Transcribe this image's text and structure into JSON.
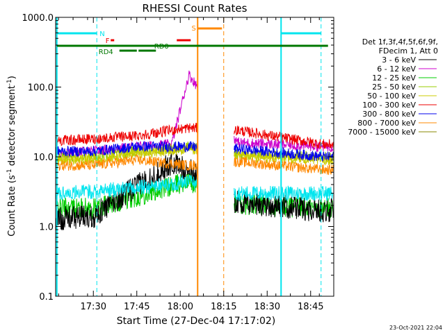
{
  "chart_data": {
    "type": "line",
    "title": "RHESSI Count Rates",
    "xlabel": "Start Time (27-Dec-04 17:17:02)",
    "ylabel_main": "Count Rate (s",
    "ylabel_sup1": "-1",
    "ylabel_mid": " detector segment",
    "ylabel_sup2": "-1",
    "ylabel_end": ")",
    "yscale": "log",
    "ylim": [
      0.1,
      1000
    ],
    "xlim_minutes": [
      17.283,
      18.883
    ],
    "x_ticks": [
      "17:30",
      "17:45",
      "18:00",
      "18:15",
      "18:30",
      "18:45"
    ],
    "y_ticks": [
      "0.1",
      "1.0",
      "10.0",
      "100.0",
      "1000.0"
    ],
    "legend_header": [
      "Det 1f,3f,4f,5f,6f,9f,",
      "FDecim 1, Att 0"
    ],
    "series": [
      {
        "name": "3 - 6 keV",
        "color": "#000000",
        "levels": [
          1.3,
          1.4,
          3.8,
          8.0,
          6.5,
          2.2,
          1.7
        ]
      },
      {
        "name": "6 - 12 keV",
        "color": "#cc00cc",
        "levels": [
          11,
          12,
          14,
          15,
          150,
          16,
          14
        ]
      },
      {
        "name": "12 - 25 keV",
        "color": "#00cc00",
        "levels": [
          1.9,
          1.8,
          2.7,
          3.8,
          4.5,
          2.1,
          1.8
        ]
      },
      {
        "name": "25 - 50 keV",
        "color": "#99cc00",
        "levels": [
          10,
          10,
          12,
          13,
          14,
          11,
          10
        ]
      },
      {
        "name": "50 - 100 keV",
        "color": "#cccc00",
        "levels": [
          9,
          9,
          11,
          12,
          13,
          10,
          9
        ]
      },
      {
        "name": "100 - 300 keV",
        "color": "#ee0000",
        "levels": [
          17,
          18,
          20,
          24,
          26,
          24,
          15
        ]
      },
      {
        "name": "300 - 800 keV",
        "color": "#0000ee",
        "levels": [
          12,
          12,
          14,
          14,
          14,
          13,
          10
        ]
      },
      {
        "name": "800 - 7000 keV",
        "color": "#ff8800",
        "levels": [
          7.5,
          7.5,
          9,
          8,
          7.5,
          8.5,
          6.5
        ]
      },
      {
        "name": "7000 - 15000 keV",
        "color": "#888800",
        "levels": []
      }
    ],
    "cyan_band": {
      "color": "#00e5ee",
      "levels": [
        3.0,
        3.2,
        3.6,
        4.0,
        4.5,
        3.0,
        3.0
      ]
    },
    "flags": [
      {
        "label": "N",
        "color": "#00e5ee"
      },
      {
        "label": "F",
        "color": "#ee0000"
      },
      {
        "label": "RD0",
        "color": "#007700"
      },
      {
        "label": "RD4",
        "color": "#007700"
      },
      {
        "label": "S",
        "color": "#ff8800"
      }
    ],
    "timestamp": "23-Oct-2021 22:04"
  }
}
